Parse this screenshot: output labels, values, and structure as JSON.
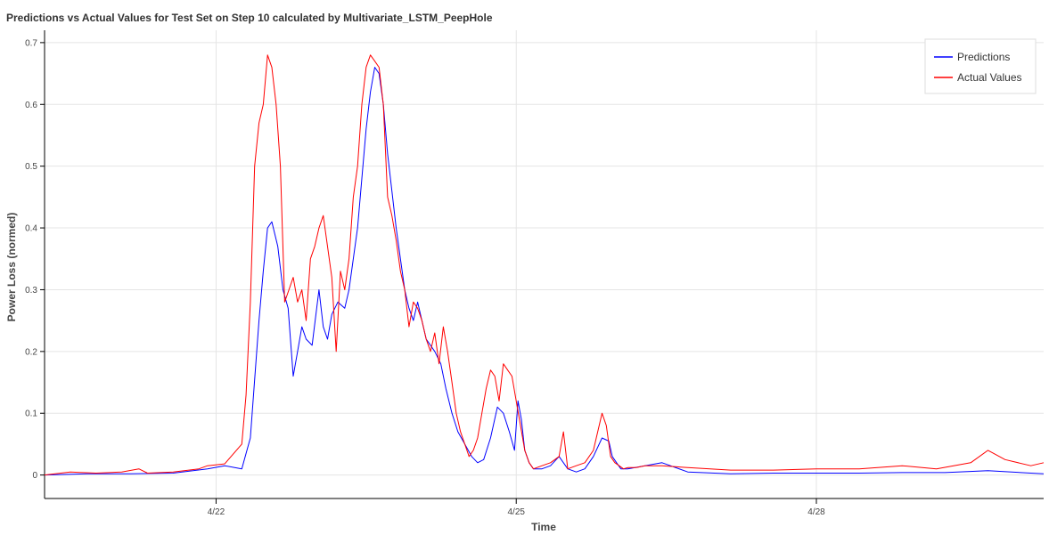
{
  "chart_data": {
    "type": "line",
    "title": "Predictions vs Actual Values for Test Set on Step 10 calculated by Multivariate_LSTM_PeepHole",
    "xlabel": "Time",
    "ylabel": "Power Loss (normed)",
    "xlim": [
      0,
      11.65
    ],
    "ylim": [
      -0.038,
      0.72
    ],
    "x_ticks": [
      {
        "value": 2.0,
        "label": "4/22"
      },
      {
        "value": 5.5,
        "label": "4/25"
      },
      {
        "value": 9.0,
        "label": "4/28"
      }
    ],
    "y_ticks": [
      {
        "value": 0,
        "label": "0"
      },
      {
        "value": 0.1,
        "label": "0.1"
      },
      {
        "value": 0.2,
        "label": "0.2"
      },
      {
        "value": 0.3,
        "label": "0.3"
      },
      {
        "value": 0.4,
        "label": "0.4"
      },
      {
        "value": 0.5,
        "label": "0.5"
      },
      {
        "value": 0.6,
        "label": "0.6"
      },
      {
        "value": 0.7,
        "label": "0.7"
      }
    ],
    "grid": true,
    "legend_position": "top-right",
    "series": [
      {
        "name": "Predictions",
        "color": "#0000ff",
        "x": [
          0.0,
          0.5,
          1.0,
          1.5,
          1.9,
          2.1,
          2.3,
          2.4,
          2.5,
          2.55,
          2.6,
          2.65,
          2.72,
          2.78,
          2.84,
          2.9,
          2.95,
          3.0,
          3.05,
          3.12,
          3.2,
          3.25,
          3.3,
          3.35,
          3.42,
          3.5,
          3.55,
          3.6,
          3.65,
          3.7,
          3.75,
          3.8,
          3.85,
          3.9,
          3.95,
          4.0,
          4.05,
          4.1,
          4.15,
          4.2,
          4.25,
          4.3,
          4.35,
          4.45,
          4.55,
          4.62,
          4.68,
          4.75,
          4.82,
          4.9,
          4.98,
          5.05,
          5.12,
          5.2,
          5.28,
          5.35,
          5.42,
          5.48,
          5.52,
          5.56,
          5.6,
          5.65,
          5.7,
          5.8,
          5.9,
          6.0,
          6.1,
          6.2,
          6.3,
          6.4,
          6.5,
          6.58,
          6.62,
          6.67,
          6.72,
          6.8,
          7.0,
          7.2,
          7.5,
          8.0,
          8.5,
          9.0,
          9.5,
          10.0,
          10.5,
          11.0,
          11.5,
          11.65
        ],
        "y": [
          0.0,
          0.002,
          0.002,
          0.003,
          0.01,
          0.015,
          0.01,
          0.06,
          0.25,
          0.33,
          0.4,
          0.41,
          0.37,
          0.3,
          0.27,
          0.16,
          0.2,
          0.24,
          0.22,
          0.21,
          0.3,
          0.24,
          0.22,
          0.26,
          0.28,
          0.27,
          0.3,
          0.35,
          0.4,
          0.48,
          0.56,
          0.62,
          0.66,
          0.65,
          0.6,
          0.52,
          0.46,
          0.4,
          0.35,
          0.3,
          0.27,
          0.25,
          0.28,
          0.22,
          0.2,
          0.18,
          0.14,
          0.1,
          0.07,
          0.05,
          0.03,
          0.02,
          0.025,
          0.06,
          0.11,
          0.1,
          0.07,
          0.04,
          0.12,
          0.09,
          0.04,
          0.02,
          0.01,
          0.01,
          0.015,
          0.03,
          0.01,
          0.005,
          0.01,
          0.03,
          0.06,
          0.055,
          0.03,
          0.02,
          0.01,
          0.01,
          0.015,
          0.02,
          0.005,
          0.002,
          0.003,
          0.003,
          0.003,
          0.004,
          0.004,
          0.007,
          0.003,
          0.002
        ]
      },
      {
        "name": "Actual Values",
        "color": "#ff0000",
        "x": [
          0.0,
          0.3,
          0.6,
          0.9,
          1.1,
          1.2,
          1.5,
          1.8,
          1.9,
          2.1,
          2.3,
          2.35,
          2.4,
          2.45,
          2.5,
          2.55,
          2.6,
          2.65,
          2.7,
          2.75,
          2.8,
          2.85,
          2.9,
          2.95,
          3.0,
          3.05,
          3.1,
          3.15,
          3.2,
          3.25,
          3.3,
          3.35,
          3.4,
          3.45,
          3.5,
          3.55,
          3.6,
          3.65,
          3.7,
          3.75,
          3.8,
          3.85,
          3.9,
          3.95,
          4.0,
          4.05,
          4.1,
          4.15,
          4.2,
          4.25,
          4.3,
          4.35,
          4.4,
          4.45,
          4.5,
          4.55,
          4.6,
          4.65,
          4.7,
          4.75,
          4.8,
          4.85,
          4.9,
          4.95,
          5.0,
          5.05,
          5.1,
          5.15,
          5.2,
          5.25,
          5.3,
          5.35,
          5.4,
          5.45,
          5.5,
          5.55,
          5.6,
          5.65,
          5.7,
          5.8,
          5.9,
          6.0,
          6.05,
          6.1,
          6.2,
          6.3,
          6.4,
          6.5,
          6.55,
          6.6,
          6.65,
          6.7,
          6.75,
          6.8,
          6.9,
          7.0,
          7.2,
          7.5,
          8.0,
          8.5,
          9.0,
          9.5,
          10.0,
          10.4,
          10.6,
          10.8,
          11.0,
          11.2,
          11.5,
          11.65
        ],
        "y": [
          0.0,
          0.005,
          0.003,
          0.005,
          0.01,
          0.003,
          0.005,
          0.01,
          0.015,
          0.018,
          0.05,
          0.13,
          0.28,
          0.5,
          0.57,
          0.6,
          0.68,
          0.66,
          0.6,
          0.5,
          0.28,
          0.3,
          0.32,
          0.28,
          0.3,
          0.25,
          0.35,
          0.37,
          0.4,
          0.42,
          0.37,
          0.32,
          0.2,
          0.33,
          0.3,
          0.35,
          0.45,
          0.5,
          0.6,
          0.66,
          0.68,
          0.67,
          0.66,
          0.6,
          0.45,
          0.42,
          0.38,
          0.33,
          0.3,
          0.24,
          0.28,
          0.27,
          0.25,
          0.22,
          0.2,
          0.23,
          0.18,
          0.24,
          0.2,
          0.15,
          0.1,
          0.07,
          0.05,
          0.03,
          0.04,
          0.06,
          0.1,
          0.14,
          0.17,
          0.16,
          0.12,
          0.18,
          0.17,
          0.16,
          0.12,
          0.08,
          0.04,
          0.02,
          0.01,
          0.015,
          0.02,
          0.03,
          0.07,
          0.01,
          0.015,
          0.02,
          0.04,
          0.1,
          0.08,
          0.03,
          0.02,
          0.015,
          0.01,
          0.012,
          0.012,
          0.015,
          0.015,
          0.012,
          0.008,
          0.008,
          0.01,
          0.01,
          0.015,
          0.01,
          0.015,
          0.02,
          0.04,
          0.025,
          0.015,
          0.02
        ]
      }
    ]
  }
}
